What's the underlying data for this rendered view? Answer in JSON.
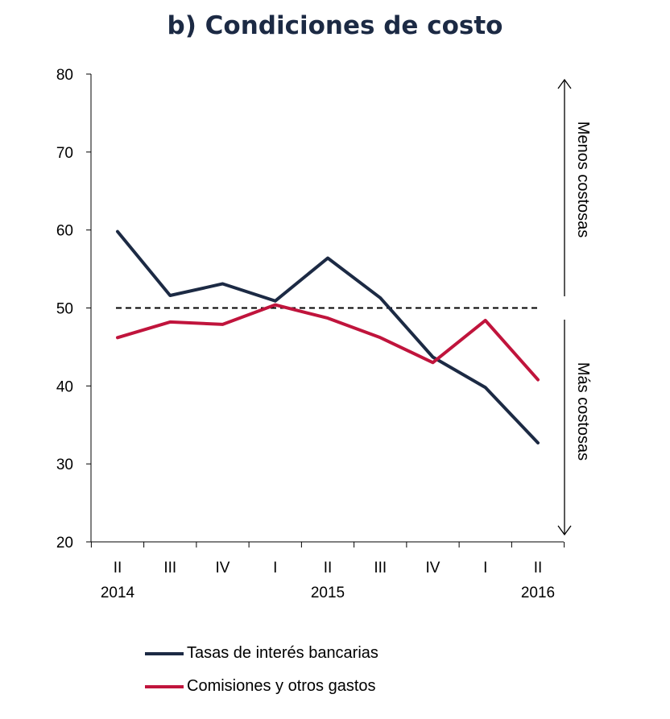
{
  "chart_data": {
    "type": "line",
    "title": "b) Condiciones de costo",
    "categories": [
      "II",
      "III",
      "IV",
      "I",
      "II",
      "III",
      "IV",
      "I",
      "II"
    ],
    "years": [
      {
        "label": "2014",
        "index": 0
      },
      {
        "label": "2015",
        "index": 4
      },
      {
        "label": "2016",
        "index": 8
      }
    ],
    "ylim": [
      20,
      80
    ],
    "yticks": [
      20,
      30,
      40,
      50,
      60,
      70,
      80
    ],
    "reference_line": 50,
    "series": [
      {
        "name": "Tasas de interés bancarias",
        "color": "#1c2a44",
        "values": [
          59.8,
          51.6,
          53.1,
          50.9,
          56.4,
          51.3,
          43.7,
          39.8,
          32.7
        ]
      },
      {
        "name": "Comisiones y otros gastos",
        "color": "#c0143c",
        "values": [
          46.2,
          48.2,
          47.9,
          50.4,
          48.7,
          46.2,
          43.0,
          48.4,
          40.8
        ]
      }
    ],
    "annotations": {
      "upper": "Menos costosas",
      "lower": "Más costosas"
    }
  }
}
